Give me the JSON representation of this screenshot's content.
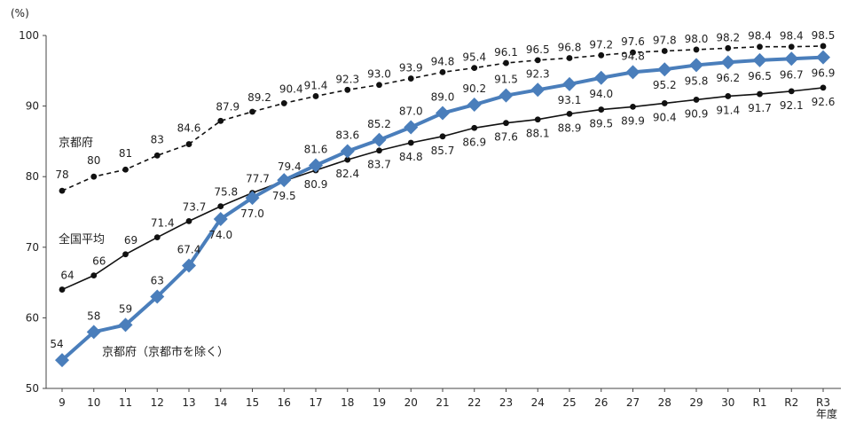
{
  "chart_data": {
    "type": "line",
    "title": "",
    "ylabel": "(%)",
    "xlabel": "年度",
    "ylim": [
      50,
      100
    ],
    "yticks": [
      50,
      60,
      70,
      80,
      90,
      100
    ],
    "grid": false,
    "categories": [
      "9",
      "10",
      "11",
      "12",
      "13",
      "14",
      "15",
      "16",
      "17",
      "18",
      "19",
      "20",
      "21",
      "22",
      "23",
      "24",
      "25",
      "26",
      "27",
      "28",
      "29",
      "30",
      "R1",
      "R2",
      "R3"
    ],
    "series": [
      {
        "name": "京都府",
        "style": "dashed",
        "marker": "circle",
        "color": "#111111",
        "values": [
          78,
          80,
          81,
          83,
          84.6,
          87.9,
          89.2,
          90.4,
          91.4,
          92.3,
          93.0,
          93.9,
          94.8,
          95.4,
          96.1,
          96.5,
          96.8,
          97.2,
          97.6,
          97.8,
          98.0,
          98.2,
          98.4,
          98.4,
          98.5
        ],
        "labels": [
          "78",
          "80",
          "81",
          "83",
          "84.6",
          "87.9",
          "89.2",
          "90.4",
          "91.4",
          "92.3",
          "93.0",
          "93.9",
          "94.8",
          "95.4",
          "96.1",
          "96.5",
          "96.8",
          "97.2",
          "97.6",
          "97.8",
          "98.0",
          "98.2",
          "98.4",
          "98.4",
          "98.5"
        ]
      },
      {
        "name": "全国平均",
        "style": "solid",
        "marker": "circle",
        "color": "#111111",
        "values": [
          64,
          66,
          69,
          71.4,
          73.7,
          75.8,
          77.7,
          79.4,
          80.9,
          82.4,
          83.7,
          84.8,
          85.7,
          86.9,
          87.6,
          88.1,
          88.9,
          89.5,
          89.9,
          90.4,
          90.9,
          91.4,
          91.7,
          92.1,
          92.6
        ],
        "labels": [
          "64",
          "66",
          "69",
          "71.4",
          "73.7",
          "75.8",
          "77.7",
          "79.4",
          "80.9",
          "82.4",
          "83.7",
          "84.8",
          "85.7",
          "86.9",
          "87.6",
          "88.1",
          "88.9",
          "89.5",
          "89.9",
          "90.4",
          "90.9",
          "91.4",
          "91.7",
          "92.1",
          "92.6"
        ]
      },
      {
        "name": "京都府（京都市を除く）",
        "style": "solid-thick",
        "marker": "diamond",
        "color": "#4a7ebb",
        "values": [
          54,
          58,
          59,
          63,
          67.4,
          74.0,
          77.0,
          79.5,
          81.6,
          83.6,
          85.2,
          87.0,
          89.0,
          90.2,
          91.5,
          92.3,
          93.1,
          94.0,
          94.8,
          95.2,
          95.8,
          96.2,
          96.5,
          96.7,
          96.9
        ],
        "labels": [
          "54",
          "58",
          "59",
          "63",
          "67.4",
          "74.0",
          "77.0",
          "79.5",
          "81.6",
          "83.6",
          "85.2",
          "87.0",
          "89.0",
          "90.2",
          "91.5",
          "92.3",
          "93.1",
          "94.0",
          "94.8",
          "95.2",
          "95.8",
          "96.2",
          "96.5",
          "96.7",
          "96.9"
        ]
      }
    ]
  }
}
